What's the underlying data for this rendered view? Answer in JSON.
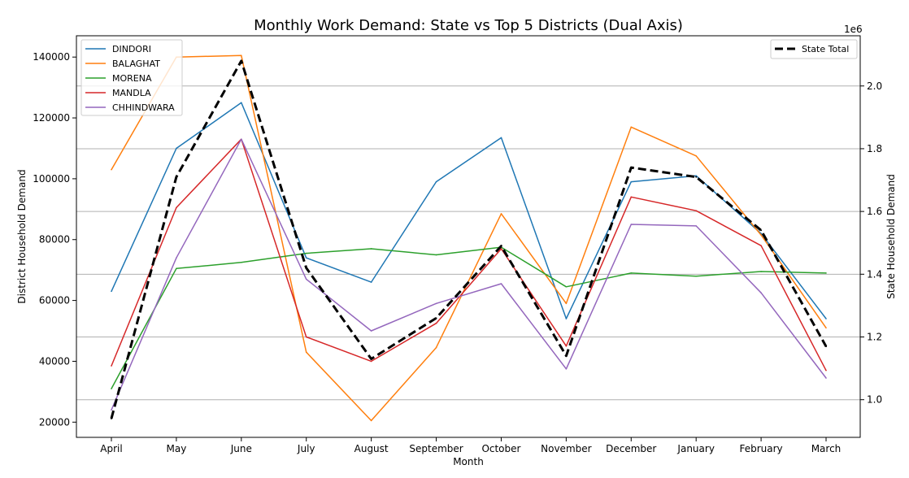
{
  "chart_data": {
    "type": "line",
    "title": "Monthly Work Demand: State vs Top 5 Districts (Dual Axis)",
    "xlabel": "Month",
    "ylabel_left": "District Household Demand",
    "ylabel_right": "State Household Demand",
    "right_axis_multiplier": "1e6",
    "categories": [
      "April",
      "May",
      "June",
      "July",
      "August",
      "September",
      "October",
      "November",
      "December",
      "January",
      "February",
      "March"
    ],
    "ylim_left": [
      15000,
      147000
    ],
    "yticks_left": [
      20000,
      40000,
      60000,
      80000,
      100000,
      120000,
      140000
    ],
    "ylim_right": [
      0.88,
      2.16
    ],
    "yticks_right": [
      1.0,
      1.2,
      1.4,
      1.6,
      1.8,
      2.0
    ],
    "yticks_right_labels": [
      "1.0",
      "1.2",
      "1.4",
      "1.6",
      "1.8",
      "2.0"
    ],
    "grid": "right-axis horizontal",
    "series": [
      {
        "name": "DINDORI",
        "color": "#1f77b4",
        "axis": "left",
        "values": [
          63000,
          110000,
          125000,
          74000,
          66000,
          99000,
          113500,
          54000,
          99000,
          101000,
          82000,
          54000
        ]
      },
      {
        "name": "BALAGHAT",
        "color": "#ff7f0e",
        "axis": "left",
        "values": [
          103000,
          140000,
          140500,
          43000,
          20500,
          44500,
          88500,
          59000,
          117000,
          107500,
          81500,
          51000
        ]
      },
      {
        "name": "MORENA",
        "color": "#2ca02c",
        "axis": "left",
        "values": [
          31000,
          70500,
          72500,
          75500,
          77000,
          75000,
          77500,
          64500,
          69000,
          68000,
          69500,
          69000
        ]
      },
      {
        "name": "MANDLA",
        "color": "#d62728",
        "axis": "left",
        "values": [
          38500,
          90500,
          113000,
          48000,
          40000,
          52500,
          77000,
          45000,
          94000,
          89500,
          78000,
          37000
        ]
      },
      {
        "name": "CHHINDWARA",
        "color": "#9467bd",
        "axis": "left",
        "values": [
          24000,
          74000,
          113000,
          67000,
          50000,
          59000,
          65500,
          37500,
          85000,
          84500,
          62500,
          34500
        ]
      }
    ],
    "state_series": {
      "name": "State Total",
      "color": "#000000",
      "style": "dashed",
      "axis": "right",
      "values": [
        0.94,
        1.71,
        2.08,
        1.42,
        1.13,
        1.26,
        1.49,
        1.14,
        1.74,
        1.71,
        1.54,
        1.17
      ]
    },
    "legend_left_placement": "upper-left",
    "legend_right_placement": "upper-right"
  }
}
